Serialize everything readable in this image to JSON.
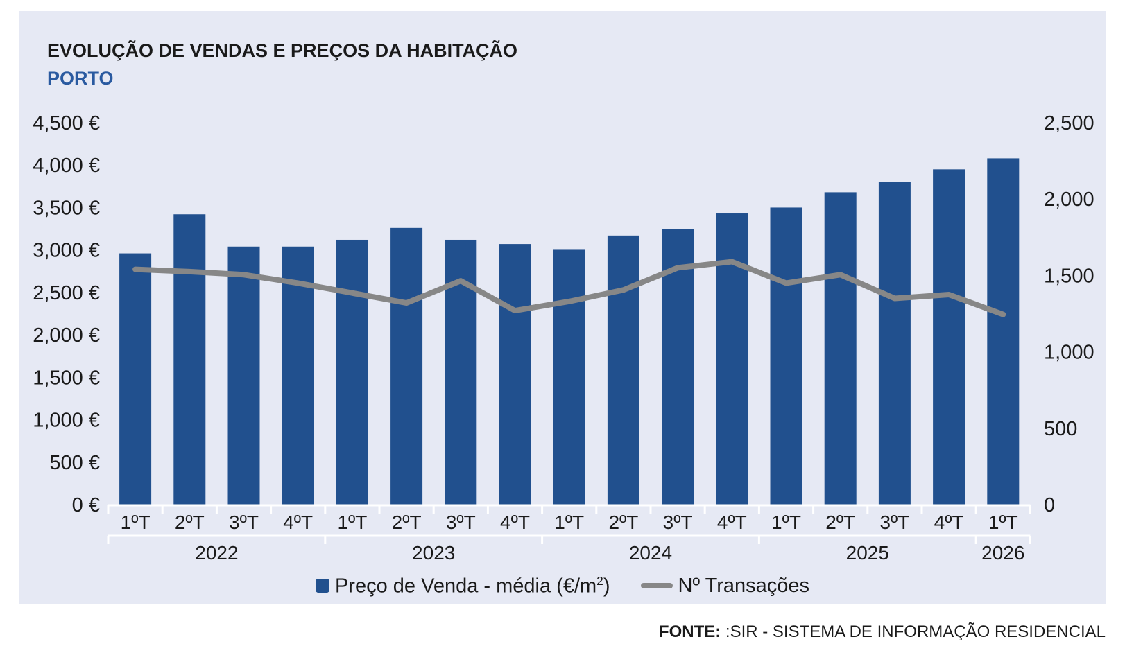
{
  "colors": {
    "bar": "#21508e",
    "line": "#878787",
    "panel": "#e6e9f4",
    "subtitle": "#2a5aa0"
  },
  "chart_data": {
    "type": "bar",
    "title": "EVOLUÇÃO DE VENDAS E PREÇOS DA HABITAÇÃO",
    "subtitle": "PORTO",
    "categories": [
      "1ºT",
      "2ºT",
      "3ºT",
      "4ºT",
      "1ºT",
      "2ºT",
      "3ºT",
      "4ºT",
      "1ºT",
      "2ºT",
      "3ºT",
      "4ºT",
      "1ºT",
      "2ºT",
      "3ºT",
      "4ºT",
      "1ºT"
    ],
    "groups": [
      {
        "label": "2022",
        "count": 4
      },
      {
        "label": "2023",
        "count": 4
      },
      {
        "label": "2024",
        "count": 4
      },
      {
        "label": "2025",
        "count": 4
      },
      {
        "label": "2026",
        "count": 1
      }
    ],
    "series": [
      {
        "name": "Preço de Venda - média (€/m²)",
        "type": "bar",
        "axis": "left",
        "values": [
          2960,
          3420,
          3040,
          3040,
          3120,
          3260,
          3120,
          3070,
          3010,
          3170,
          3250,
          3430,
          3500,
          3680,
          3800,
          3950,
          4080
        ]
      },
      {
        "name": "Nº Transações",
        "type": "line",
        "axis": "right",
        "values": [
          1540,
          1525,
          1505,
          1450,
          1385,
          1320,
          1465,
          1270,
          1330,
          1405,
          1550,
          1590,
          1450,
          1505,
          1350,
          1375,
          1245
        ]
      }
    ],
    "y_left": {
      "min": 0,
      "max": 4500,
      "ticks": [
        "0 €",
        "500 €",
        "1,000 €",
        "1,500 €",
        "2,000 €",
        "2,500 €",
        "3,000 €",
        "3,500 €",
        "4,000 €",
        "4,500 €"
      ]
    },
    "y_right": {
      "min": 0,
      "max": 2500,
      "ticks": [
        "0",
        "500",
        "1,000",
        "1,500",
        "2,000",
        "2,500"
      ]
    },
    "legend_position": "bottom"
  },
  "legend": {
    "bar_label": "Preço de Venda - média (€/m",
    "bar_label_sup": "2",
    "bar_label_end": ")",
    "line_label": "Nº Transações"
  },
  "source": {
    "label": "FONTE:",
    "text": " :SIR - SISTEMA DE INFORMAÇÃO RESIDENCIAL"
  }
}
